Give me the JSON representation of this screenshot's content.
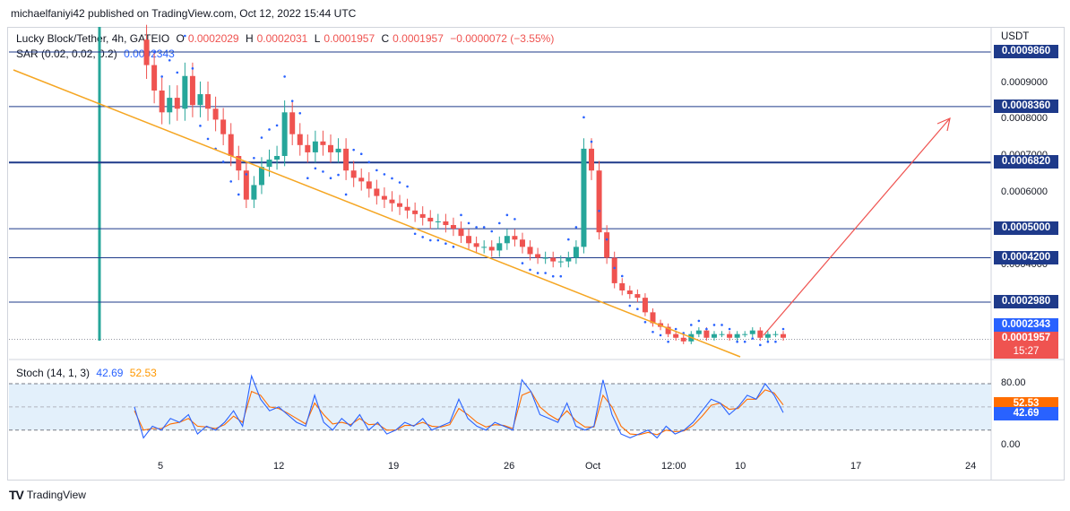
{
  "publisher": "michaelfaniyi42 published on TradingView.com, Oct 12, 2022 15:44 UTC",
  "legend": {
    "symbol": "Lucky Block/Tether, 4h, GATEIO",
    "o_label": "O",
    "o": "0.0002029",
    "h_label": "H",
    "h": "0.0002031",
    "l_label": "L",
    "l": "0.0001957",
    "c_label": "C",
    "c": "0.0001957",
    "change": "−0.0000072 (−3.55%)",
    "sar_label": "SAR (0.02, 0.02, 0.2)",
    "sar": "0.0002343",
    "stoch_label": "Stoch (14, 1, 3)",
    "stoch_k": "42.69",
    "stoch_d": "52.53"
  },
  "colors": {
    "up": "#26a69a",
    "down": "#ef5350",
    "sar": "#2962ff",
    "trendline": "#f5a623",
    "arrow": "#ef5350",
    "hline": "#1e3a8a",
    "stoch_k": "#2962ff",
    "stoch_d": "#ff6d00",
    "stoch_band": "#e3f0fb"
  },
  "chart_data": {
    "type": "candlestick",
    "unit": "USDT",
    "price_axis_ticks": [
      "0.0009000",
      "0.0008000",
      "0.0007000",
      "0.0006000",
      "0.0004000"
    ],
    "x_ticks": [
      "5",
      "12",
      "19",
      "26",
      "Oct",
      "12:00",
      "10",
      "17",
      "24"
    ],
    "horizontal_levels": [
      {
        "label": "0.0009860",
        "value": 0.000986
      },
      {
        "label": "0.0008360",
        "value": 0.000836
      },
      {
        "label": "0.0006820",
        "value": 0.000682
      },
      {
        "label": "0.0005000",
        "value": 0.0005
      },
      {
        "label": "0.0004200",
        "value": 0.00042
      },
      {
        "label": "0.0002980",
        "value": 0.000298
      }
    ],
    "current_sar": {
      "label": "0.0002343",
      "value": 0.0002343
    },
    "current_price": {
      "label": "0.0001957",
      "value": 0.0001957,
      "countdown": "15:27"
    },
    "trendline": "descending from top-left toward the latest candles",
    "projection_arrow": "upward from the latest candles",
    "price_path": [
      0.00102,
      0.00095,
      0.00088,
      0.00082,
      0.00086,
      0.00083,
      0.00092,
      0.00084,
      0.00087,
      0.00083,
      0.0008,
      0.00076,
      0.0007,
      0.00066,
      0.00058,
      0.00062,
      0.00067,
      0.00069,
      0.0007,
      0.00082,
      0.00076,
      0.00073,
      0.00071,
      0.00074,
      0.00073,
      0.00071,
      0.00072,
      0.00066,
      0.00064,
      0.00063,
      0.00061,
      0.00059,
      0.00058,
      0.00057,
      0.00056,
      0.00055,
      0.00054,
      0.00053,
      0.00052,
      0.00052,
      0.00051,
      0.0005,
      0.00048,
      0.00046,
      0.00045,
      0.00045,
      0.00044,
      0.00046,
      0.00048,
      0.00047,
      0.00045,
      0.00043,
      0.00042,
      0.00042,
      0.00041,
      0.00041,
      0.00042,
      0.00045,
      0.00072,
      0.00066,
      0.00049,
      0.00042,
      0.00035,
      0.00033,
      0.00032,
      0.00031,
      0.00027,
      0.00024,
      0.00023,
      0.00021,
      0.0002,
      0.00019,
      0.00021,
      0.00022,
      0.0002,
      0.00021,
      0.00021,
      0.0002,
      0.00021,
      0.00021,
      0.00022,
      0.0002,
      0.00021,
      0.00021,
      0.0002
    ],
    "stoch": {
      "k": [
        50,
        10,
        25,
        20,
        35,
        30,
        40,
        15,
        25,
        20,
        30,
        45,
        25,
        90,
        60,
        45,
        50,
        40,
        30,
        25,
        65,
        30,
        20,
        35,
        25,
        40,
        20,
        30,
        15,
        20,
        30,
        25,
        35,
        20,
        25,
        30,
        60,
        35,
        25,
        20,
        30,
        25,
        20,
        85,
        70,
        40,
        35,
        30,
        55,
        25,
        20,
        25,
        85,
        40,
        15,
        10,
        15,
        20,
        10,
        25,
        15,
        20,
        30,
        45,
        60,
        55,
        40,
        50,
        65,
        60,
        80,
        65,
        42.69
      ],
      "d": [
        45,
        20,
        22,
        22,
        28,
        30,
        35,
        25,
        24,
        22,
        27,
        38,
        30,
        70,
        65,
        50,
        48,
        42,
        35,
        28,
        55,
        40,
        28,
        30,
        27,
        35,
        27,
        28,
        20,
        20,
        26,
        26,
        30,
        25,
        24,
        27,
        48,
        40,
        30,
        24,
        27,
        26,
        22,
        65,
        70,
        50,
        40,
        33,
        45,
        32,
        24,
        24,
        65,
        50,
        25,
        15,
        14,
        17,
        14,
        20,
        18,
        19,
        26,
        38,
        52,
        55,
        47,
        48,
        60,
        60,
        72,
        68,
        52.53
      ],
      "levels": [
        "80.00",
        "0.00"
      ],
      "k_label": "42.69",
      "d_label": "52.53"
    }
  }
}
